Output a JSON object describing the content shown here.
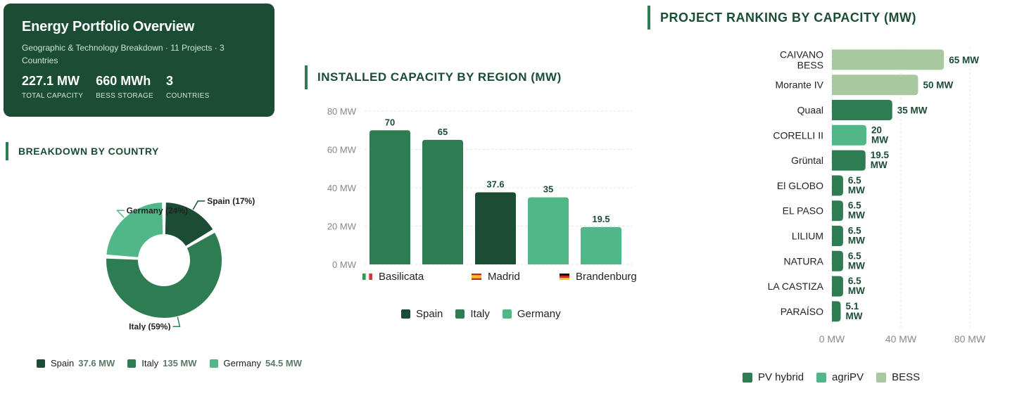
{
  "summary": {
    "title": "Energy Portfolio Overview",
    "subtitle": "Geographic & Technology Breakdown · 11 Projects · 3 Countries",
    "kpis": [
      {
        "value": "227.1 MW",
        "label": "TOTAL CAPACITY"
      },
      {
        "value": "660 MWh",
        "label": "BESS STORAGE"
      },
      {
        "value": "3",
        "label": "COUNTRIES"
      }
    ]
  },
  "colors": {
    "spain": "#1b4d35",
    "italy": "#2e7d52",
    "germany": "#52b788",
    "bess": "#a8c8a0"
  },
  "chart_data": [
    {
      "type": "pie",
      "title": "BREAKDOWN BY COUNTRY",
      "labels": [
        "Spain",
        "Italy",
        "Germany"
      ],
      "values": [
        37.6,
        135,
        54.5
      ],
      "slice_labels": [
        "Spain (17%)",
        "Italy (59%)",
        "Germany (24%)"
      ],
      "legend": [
        {
          "name": "Spain",
          "value": "37.6 MW"
        },
        {
          "name": "Italy",
          "value": "135 MW"
        },
        {
          "name": "Germany",
          "value": "54.5 MW"
        }
      ]
    },
    {
      "type": "bar",
      "title": "INSTALLED CAPACITY BY REGION (MW)",
      "categories": [
        "Basilicata",
        "Basilicata",
        "Madrid",
        "Brandenburg",
        "Brandenburg"
      ],
      "countries": [
        "Italy",
        "Italy",
        "Spain",
        "Germany",
        "Germany"
      ],
      "values": [
        70,
        65,
        37.6,
        35,
        19.5
      ],
      "value_labels": [
        "70",
        "65",
        "37.6",
        "35",
        "19.5"
      ],
      "x_tick_labels": [
        "Basilicata",
        "Madrid",
        "Brandenburg"
      ],
      "y_ticks": [
        "0 MW",
        "20 MW",
        "40 MW",
        "60 MW",
        "80 MW"
      ],
      "ylim": [
        0,
        80
      ],
      "legend": [
        "Spain",
        "Italy",
        "Germany"
      ]
    },
    {
      "type": "bar",
      "orientation": "horizontal",
      "title": "PROJECT RANKING BY CAPACITY (MW)",
      "categories": [
        "CAIVANO BESS",
        "Morante IV",
        "Quaal",
        "CORELLI II",
        "Grüntal",
        "El GLOBO",
        "EL PASO",
        "LILIUM",
        "NATURA",
        "LA CASTIZA",
        "PARAÍSO"
      ],
      "category_lines": [
        [
          "CAIVANO",
          "BESS"
        ],
        [
          "Morante IV"
        ],
        [
          "Quaal"
        ],
        [
          "CORELLI II"
        ],
        [
          "Grüntal"
        ],
        [
          "El GLOBO"
        ],
        [
          "EL PASO"
        ],
        [
          "LILIUM"
        ],
        [
          "NATURA"
        ],
        [
          "LA CASTIZA"
        ],
        [
          "PARAÍSO"
        ]
      ],
      "values": [
        65,
        50,
        35,
        20,
        19.5,
        6.5,
        6.5,
        6.5,
        6.5,
        6.5,
        5.1
      ],
      "value_labels": [
        "65 MW",
        "50 MW",
        "35 MW",
        "20 MW",
        "19.5 MW",
        "6.5 MW",
        "6.5 MW",
        "6.5 MW",
        "6.5 MW",
        "6.5 MW",
        "5.1 MW"
      ],
      "technology": [
        "BESS",
        "BESS",
        "PV hybrid",
        "agriPV",
        "PV hybrid",
        "PV hybrid",
        "PV hybrid",
        "PV hybrid",
        "PV hybrid",
        "PV hybrid",
        "PV hybrid"
      ],
      "x_ticks": [
        "0 MW",
        "40 MW",
        "80 MW"
      ],
      "xlim": [
        0,
        80
      ],
      "legend": [
        "PV hybrid",
        "agriPV",
        "BESS"
      ]
    }
  ]
}
